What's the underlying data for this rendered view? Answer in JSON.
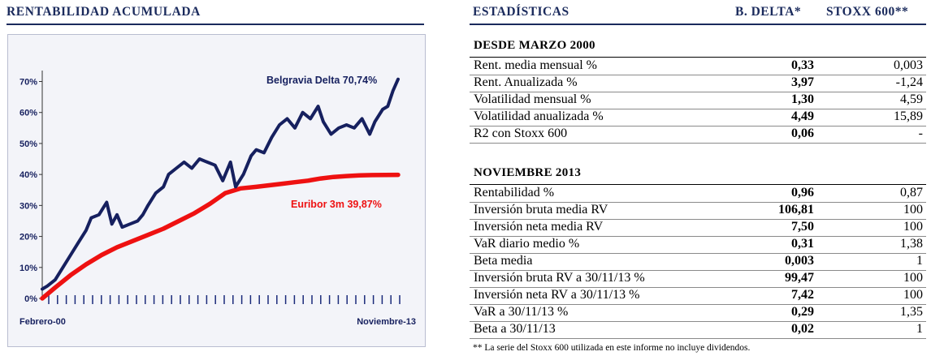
{
  "left": {
    "title": "RENTABILIDAD ACUMULADA"
  },
  "chart_data": {
    "type": "line",
    "xlabel_start": "Febrero-00",
    "xlabel_end": "Noviembre-13",
    "yticks": [
      "0%",
      "10%",
      "20%",
      "30%",
      "40%",
      "50%",
      "60%",
      "70%"
    ],
    "ylim": [
      0,
      75
    ],
    "x_range": [
      2000.1,
      2013.9
    ],
    "grid": false,
    "series": [
      {
        "name": "Belgravia Delta 70,74%",
        "color": "#16205f",
        "x": [
          2000.1,
          2000.3,
          2000.6,
          2000.9,
          2001.2,
          2001.5,
          2001.8,
          2002.0,
          2002.3,
          2002.6,
          2002.8,
          2003.0,
          2003.2,
          2003.5,
          2003.8,
          2004.0,
          2004.2,
          2004.5,
          2004.8,
          2005.0,
          2005.3,
          2005.6,
          2005.9,
          2006.2,
          2006.5,
          2006.8,
          2007.1,
          2007.4,
          2007.6,
          2007.9,
          2008.2,
          2008.4,
          2008.7,
          2009.0,
          2009.3,
          2009.6,
          2009.9,
          2010.2,
          2010.5,
          2010.8,
          2011.0,
          2011.3,
          2011.6,
          2011.9,
          2012.2,
          2012.5,
          2012.8,
          2013.0,
          2013.3,
          2013.5,
          2013.7,
          2013.9
        ],
        "values": [
          3,
          4,
          6,
          10,
          14,
          18,
          22,
          26,
          27,
          31,
          24,
          27,
          23,
          24,
          25,
          27,
          30,
          34,
          36,
          40,
          42,
          44,
          42,
          45,
          44,
          43,
          38,
          44,
          36,
          40,
          46,
          48,
          47,
          52,
          56,
          58,
          55,
          60,
          58,
          62,
          57,
          53,
          55,
          56,
          55,
          58,
          53,
          57,
          61,
          62,
          67,
          70.74
        ]
      },
      {
        "name": "Euribor 3m 39,87%",
        "color": "#ee1111",
        "x": [
          2000.1,
          2000.6,
          2001.2,
          2001.8,
          2002.4,
          2003.0,
          2003.6,
          2004.2,
          2004.8,
          2005.4,
          2006.0,
          2006.6,
          2007.2,
          2007.8,
          2008.4,
          2008.9,
          2009.4,
          2009.9,
          2010.4,
          2010.9,
          2011.4,
          2011.9,
          2012.4,
          2012.9,
          2013.4,
          2013.9
        ],
        "values": [
          0,
          3.5,
          7.5,
          11,
          14,
          16.5,
          18.5,
          20.5,
          22.5,
          25,
          27.5,
          30.5,
          34,
          35.5,
          36,
          36.5,
          37,
          37.5,
          38,
          38.7,
          39.2,
          39.5,
          39.7,
          39.8,
          39.85,
          39.87
        ]
      }
    ]
  },
  "right": {
    "col_title": "ESTADÍSTICAS",
    "col1": "B. DELTA*",
    "col2": "STOXX 600**",
    "sections": [
      {
        "title": "DESDE MARZO 2000",
        "rows": [
          {
            "label": "Rent. media mensual %",
            "v1": "0,33",
            "v2": "0,003"
          },
          {
            "label": "Rent. Anualizada %",
            "v1": "3,97",
            "v2": "-1,24"
          },
          {
            "label": "Volatilidad mensual %",
            "v1": "1,30",
            "v2": "4,59"
          },
          {
            "label": "Volatilidad anualizada %",
            "v1": "4,49",
            "v2": "15,89"
          },
          {
            "label": "R2 con Stoxx 600",
            "v1": "0,06",
            "v2": "-"
          }
        ]
      },
      {
        "title": "NOVIEMBRE 2013",
        "rows": [
          {
            "label": "Rentabilidad %",
            "v1": "0,96",
            "v2": "0,87"
          },
          {
            "label": "Inversión bruta media RV",
            "v1": "106,81",
            "v2": "100"
          },
          {
            "label": "Inversión neta media RV",
            "v1": "7,50",
            "v2": "100"
          },
          {
            "label": "VaR diario medio %",
            "v1": "0,31",
            "v2": "1,38"
          },
          {
            "label": "Beta media",
            "v1": "0,003",
            "v2": "1"
          },
          {
            "label": "Inversión bruta RV a 30/11/13 %",
            "v1": "99,47",
            "v2": "100"
          },
          {
            "label": "Inversión neta RV a 30/11/13 %",
            "v1": "7,42",
            "v2": "100"
          },
          {
            "label": "VaR a 30/11/13 %",
            "v1": "0,29",
            "v2": "1,35"
          },
          {
            "label": "Beta a 30/11/13",
            "v1": "0,02",
            "v2": "1"
          }
        ]
      }
    ],
    "footnote": "** La serie del Stoxx 600 utilizada en este informe no incluye dividendos."
  }
}
